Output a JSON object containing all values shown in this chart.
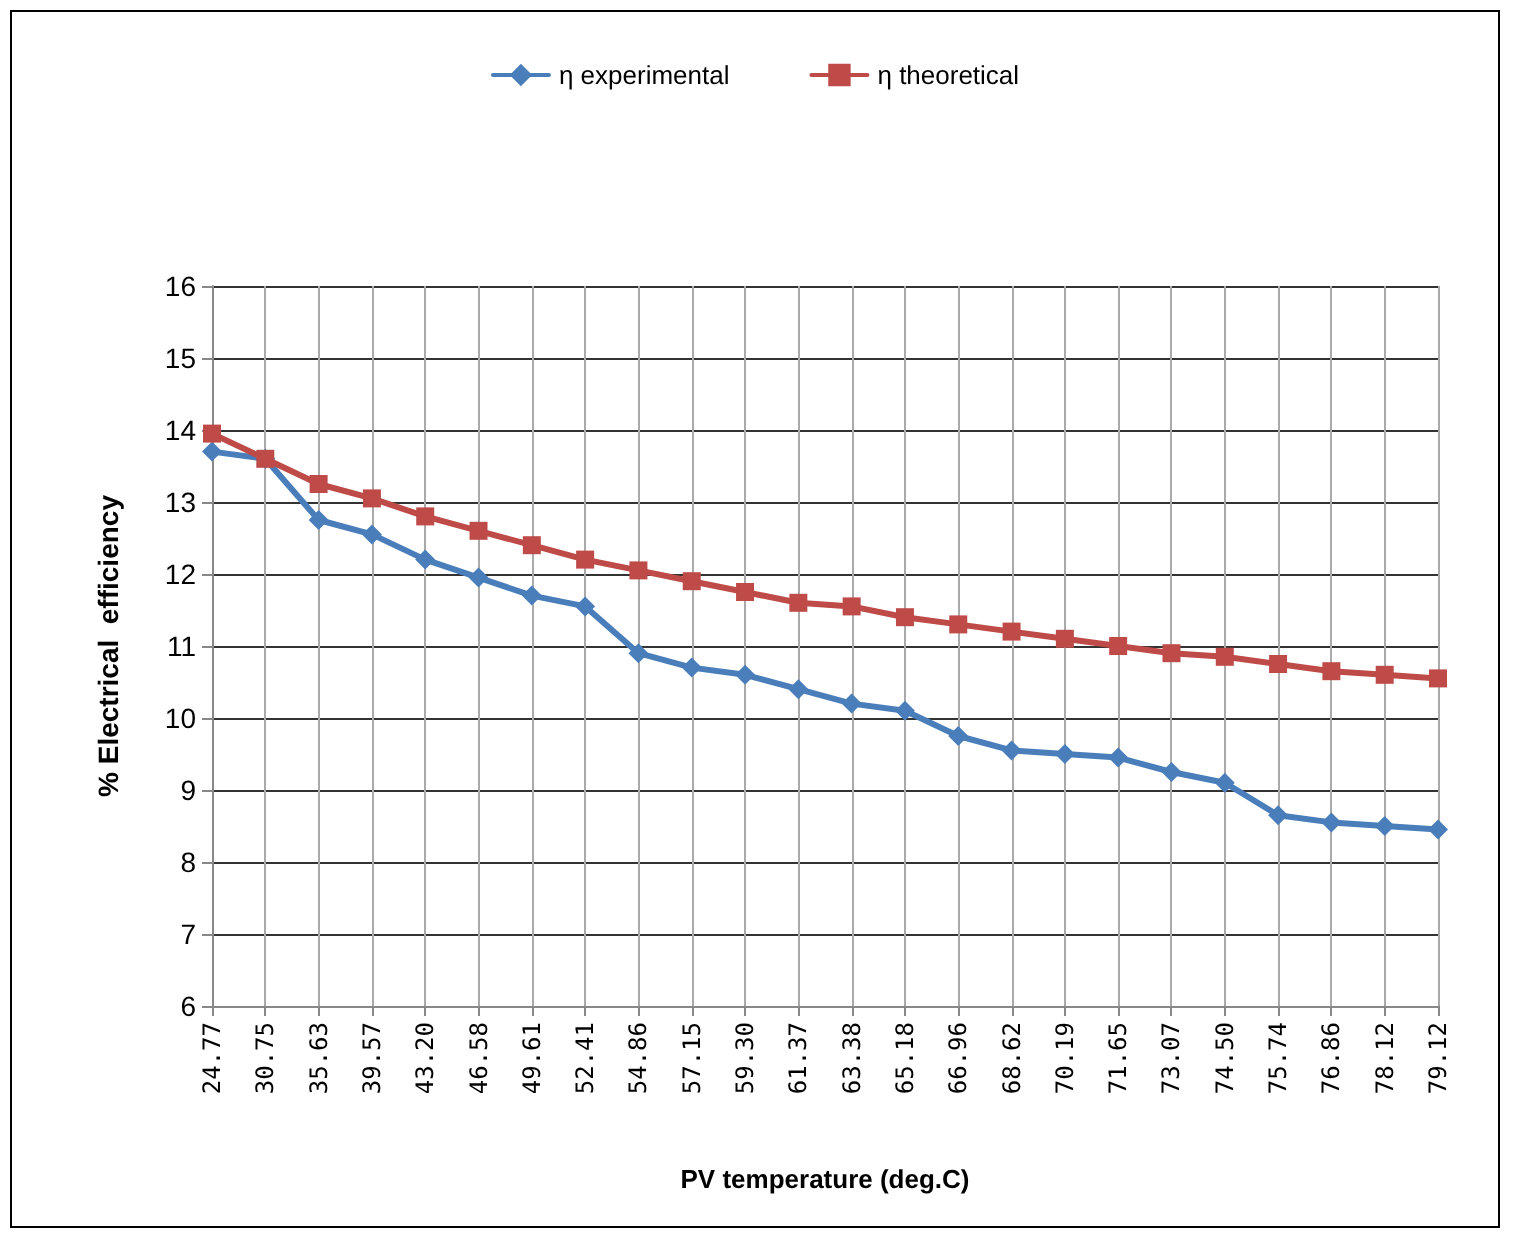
{
  "chart_data": {
    "type": "line",
    "xlabel": "PV temperature (deg.C)",
    "ylabel": "% Electrical  efficiency",
    "categories": [
      "24.77",
      "30.75",
      "35.63",
      "39.57",
      "43.20",
      "46.58",
      "49.61",
      "52.41",
      "54.86",
      "57.15",
      "59.30",
      "61.37",
      "63.38",
      "65.18",
      "66.96",
      "68.62",
      "70.19",
      "71.65",
      "73.07",
      "74.50",
      "75.74",
      "76.86",
      "78.12",
      "79.12"
    ],
    "series": [
      {
        "name": "η experimental",
        "color": "#4a7ebb",
        "marker": "diamond",
        "values": [
          13.7,
          13.6,
          12.75,
          12.55,
          12.2,
          11.95,
          11.7,
          11.55,
          10.9,
          10.7,
          10.6,
          10.4,
          10.2,
          10.1,
          9.75,
          9.55,
          9.5,
          9.45,
          9.25,
          9.1,
          8.65,
          8.55,
          8.5,
          8.45
        ]
      },
      {
        "name": "η theoretical",
        "color": "#be4b48",
        "marker": "square",
        "values": [
          13.95,
          13.6,
          13.25,
          13.05,
          12.8,
          12.6,
          12.4,
          12.2,
          12.05,
          11.9,
          11.75,
          11.6,
          11.55,
          11.4,
          11.3,
          11.2,
          11.1,
          11.0,
          10.9,
          10.85,
          10.75,
          10.65,
          10.6,
          10.55
        ]
      }
    ],
    "ylim": [
      6,
      16
    ],
    "yticks": [
      6,
      7,
      8,
      9,
      10,
      11,
      12,
      13,
      14,
      15,
      16
    ],
    "grid": true,
    "legend": "top",
    "line_style": "solid"
  }
}
